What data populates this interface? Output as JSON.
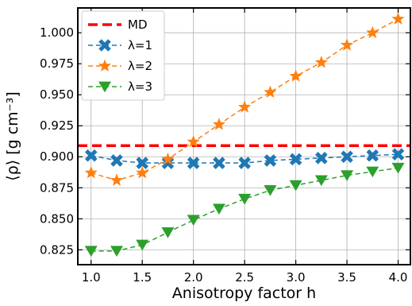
{
  "chart_data": {
    "type": "line",
    "xlabel": "Anisotropy factor h",
    "ylabel": "⟨ρ⟩ [g cm⁻³]",
    "xlim": [
      0.87,
      4.12
    ],
    "ylim": [
      0.813,
      1.02
    ],
    "xticks": [
      1.0,
      1.5,
      2.0,
      2.5,
      3.0,
      3.5,
      4.0
    ],
    "xtick_labels": [
      "1.0",
      "1.5",
      "2.0",
      "2.5",
      "3.0",
      "3.5",
      "4.0"
    ],
    "yticks": [
      0.825,
      0.85,
      0.875,
      0.9,
      0.925,
      0.95,
      0.975,
      1.0
    ],
    "ytick_labels": [
      "0.825",
      "0.850",
      "0.875",
      "0.900",
      "0.925",
      "0.950",
      "0.975",
      "1.000"
    ],
    "grid": true,
    "legend_position": "top-left",
    "reference_line": {
      "name": "MD",
      "y": 0.909,
      "color": "#ff0000"
    },
    "x": [
      1.0,
      1.25,
      1.5,
      1.75,
      2.0,
      2.25,
      2.5,
      2.75,
      3.0,
      3.25,
      3.5,
      3.75,
      4.0
    ],
    "series": [
      {
        "name": "λ=1",
        "marker": "x",
        "color": "#1f77b4",
        "values": [
          0.901,
          0.897,
          0.895,
          0.895,
          0.895,
          0.895,
          0.895,
          0.897,
          0.898,
          0.899,
          0.9,
          0.901,
          0.902
        ]
      },
      {
        "name": "λ=2",
        "marker": "star",
        "color": "#ff7f0e",
        "values": [
          0.887,
          0.881,
          0.887,
          0.898,
          0.912,
          0.926,
          0.94,
          0.952,
          0.965,
          0.976,
          0.99,
          1.0,
          1.011
        ]
      },
      {
        "name": "λ=3",
        "marker": "triangle-down",
        "color": "#2ca02c",
        "values": [
          0.824,
          0.824,
          0.829,
          0.839,
          0.849,
          0.858,
          0.866,
          0.873,
          0.877,
          0.881,
          0.885,
          0.888,
          0.891
        ]
      }
    ]
  }
}
